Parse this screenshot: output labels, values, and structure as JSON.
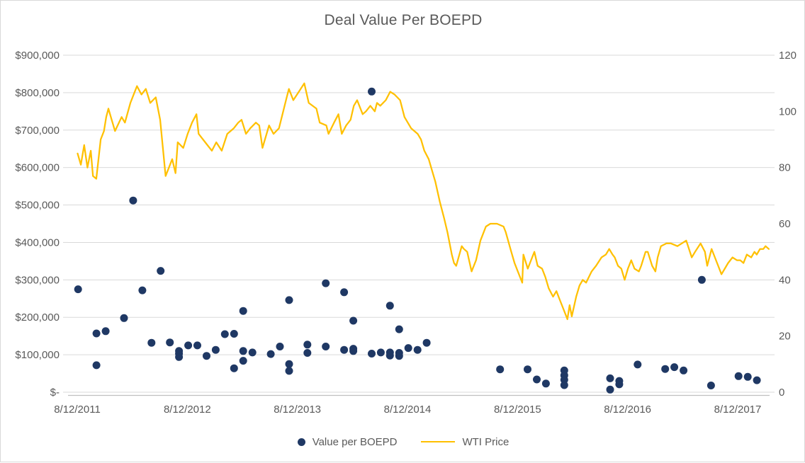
{
  "title": "Deal Value Per BOEPD",
  "legend": [
    {
      "label": "Value per BOEPD",
      "marker": "dot-icon"
    },
    {
      "label": "WTI Price",
      "marker": "line-icon"
    }
  ],
  "colors": {
    "scatter": "#1F3864",
    "line": "#FFC000",
    "grid": "#D9D9D9",
    "axis_line": "#BFBFBF",
    "text": "#595959"
  },
  "left_axis": {
    "tick_labels": [
      "$900,000",
      "$800,000",
      "$700,000",
      "$600,000",
      "$500,000",
      "$400,000",
      "$300,000",
      "$200,000",
      "$100,000",
      "$-"
    ],
    "min": 0,
    "max": 900000,
    "step": 100000
  },
  "right_axis": {
    "tick_labels": [
      "120",
      "100",
      "80",
      "60",
      "40",
      "20",
      "0"
    ],
    "min": 0,
    "max": 120,
    "step": 20
  },
  "x_axis": {
    "tick_labels": [
      "8/12/2011",
      "8/12/2012",
      "8/12/2013",
      "8/12/2014",
      "8/12/2015",
      "8/12/2016",
      "8/12/2017"
    ]
  },
  "chart_data": {
    "type": "scatter",
    "title": "Deal Value Per BOEPD",
    "grid": true,
    "legend_position": "bottom",
    "left_ylim": [
      0,
      900000
    ],
    "right_ylim": [
      0,
      120
    ],
    "x_start": "8/12/2011",
    "x_end": "8/12/2017",
    "series": [
      {
        "name": "Value per BOEPD",
        "type": "scatter",
        "axis": "left",
        "points": [
          [
            "2011-08",
            275000
          ],
          [
            "2011-10",
            157000
          ],
          [
            "2011-10",
            72000
          ],
          [
            "2011-11",
            163000
          ],
          [
            "2012-01",
            198000
          ],
          [
            "2012-02",
            512000
          ],
          [
            "2012-03",
            272000
          ],
          [
            "2012-04",
            132000
          ],
          [
            "2012-05",
            324000
          ],
          [
            "2012-06",
            133000
          ],
          [
            "2012-07",
            110000
          ],
          [
            "2012-07",
            94000
          ],
          [
            "2012-07",
            103000
          ],
          [
            "2012-08",
            125000
          ],
          [
            "2012-09",
            125000
          ],
          [
            "2012-10",
            97000
          ],
          [
            "2012-11",
            113000
          ],
          [
            "2012-12",
            155000
          ],
          [
            "2013-01",
            156000
          ],
          [
            "2013-01",
            64000
          ],
          [
            "2013-02",
            217000
          ],
          [
            "2013-02",
            110000
          ],
          [
            "2013-02",
            84000
          ],
          [
            "2013-03",
            106000
          ],
          [
            "2013-05",
            102000
          ],
          [
            "2013-06",
            122000
          ],
          [
            "2013-07",
            246000
          ],
          [
            "2013-07",
            75000
          ],
          [
            "2013-07",
            57000
          ],
          [
            "2013-09",
            127000
          ],
          [
            "2013-09",
            105000
          ],
          [
            "2013-11",
            291000
          ],
          [
            "2013-11",
            122000
          ],
          [
            "2014-01",
            267000
          ],
          [
            "2014-01",
            113000
          ],
          [
            "2014-02",
            116000
          ],
          [
            "2014-02",
            110000
          ],
          [
            "2014-02",
            191000
          ],
          [
            "2014-04",
            803000
          ],
          [
            "2014-04",
            103000
          ],
          [
            "2014-05",
            106000
          ],
          [
            "2014-06",
            231000
          ],
          [
            "2014-06",
            106000
          ],
          [
            "2014-06",
            98000
          ],
          [
            "2014-07",
            168000
          ],
          [
            "2014-07",
            97000
          ],
          [
            "2014-07",
            105000
          ],
          [
            "2014-08",
            118000
          ],
          [
            "2014-09",
            113000
          ],
          [
            "2014-10",
            132000
          ],
          [
            "2015-06",
            61000
          ],
          [
            "2015-09",
            61000
          ],
          [
            "2015-10",
            34000
          ],
          [
            "2015-11",
            23000
          ],
          [
            "2016-01",
            58000
          ],
          [
            "2016-01",
            45000
          ],
          [
            "2016-01",
            33000
          ],
          [
            "2016-01",
            19000
          ],
          [
            "2016-06",
            37000
          ],
          [
            "2016-06",
            7000
          ],
          [
            "2016-07",
            30000
          ],
          [
            "2016-07",
            21000
          ],
          [
            "2016-09",
            74000
          ],
          [
            "2016-12",
            62000
          ],
          [
            "2017-01",
            67000
          ],
          [
            "2017-02",
            58000
          ],
          [
            "2017-04",
            300000
          ],
          [
            "2017-05",
            18000
          ],
          [
            "2017-08",
            43000
          ],
          [
            "2017-09",
            41000
          ],
          [
            "2017-10",
            32000
          ]
        ]
      },
      {
        "name": "WTI Price",
        "type": "line",
        "axis": "right",
        "points": [
          [
            2011.62,
            85
          ],
          [
            2011.65,
            81
          ],
          [
            2011.68,
            88
          ],
          [
            2011.71,
            80
          ],
          [
            2011.74,
            86
          ],
          [
            2011.76,
            77
          ],
          [
            2011.79,
            76
          ],
          [
            2011.83,
            90
          ],
          [
            2011.86,
            93
          ],
          [
            2011.88,
            98
          ],
          [
            2011.9,
            101
          ],
          [
            2011.93,
            97
          ],
          [
            2011.96,
            93
          ],
          [
            2012.02,
            98
          ],
          [
            2012.05,
            96
          ],
          [
            2012.1,
            103
          ],
          [
            2012.16,
            109
          ],
          [
            2012.2,
            106
          ],
          [
            2012.24,
            108
          ],
          [
            2012.28,
            103
          ],
          [
            2012.33,
            105
          ],
          [
            2012.37,
            97
          ],
          [
            2012.42,
            77
          ],
          [
            2012.45,
            80
          ],
          [
            2012.48,
            83
          ],
          [
            2012.51,
            78
          ],
          [
            2012.53,
            89
          ],
          [
            2012.58,
            87
          ],
          [
            2012.62,
            92
          ],
          [
            2012.66,
            96
          ],
          [
            2012.7,
            99
          ],
          [
            2012.72,
            92
          ],
          [
            2012.78,
            89
          ],
          [
            2012.84,
            86
          ],
          [
            2012.88,
            89
          ],
          [
            2012.93,
            86
          ],
          [
            2012.98,
            92
          ],
          [
            2013.04,
            94
          ],
          [
            2013.08,
            96
          ],
          [
            2013.11,
            97
          ],
          [
            2013.15,
            92
          ],
          [
            2013.19,
            94
          ],
          [
            2013.24,
            96
          ],
          [
            2013.27,
            95
          ],
          [
            2013.3,
            87
          ],
          [
            2013.36,
            95
          ],
          [
            2013.4,
            92
          ],
          [
            2013.45,
            94
          ],
          [
            2013.52,
            105
          ],
          [
            2013.54,
            108
          ],
          [
            2013.58,
            104
          ],
          [
            2013.63,
            107
          ],
          [
            2013.68,
            110
          ],
          [
            2013.72,
            103
          ],
          [
            2013.79,
            101
          ],
          [
            2013.82,
            96
          ],
          [
            2013.88,
            95
          ],
          [
            2013.9,
            92
          ],
          [
            2013.95,
            96
          ],
          [
            2013.99,
            99
          ],
          [
            2014.02,
            92
          ],
          [
            2014.06,
            95
          ],
          [
            2014.1,
            97
          ],
          [
            2014.13,
            102
          ],
          [
            2014.16,
            104
          ],
          [
            2014.21,
            99
          ],
          [
            2014.24,
            100
          ],
          [
            2014.28,
            102
          ],
          [
            2014.32,
            100
          ],
          [
            2014.34,
            103
          ],
          [
            2014.37,
            102
          ],
          [
            2014.42,
            104
          ],
          [
            2014.46,
            107
          ],
          [
            2014.5,
            106
          ],
          [
            2014.55,
            104
          ],
          [
            2014.59,
            98
          ],
          [
            2014.65,
            94
          ],
          [
            2014.71,
            92
          ],
          [
            2014.74,
            90
          ],
          [
            2014.77,
            86
          ],
          [
            2014.81,
            83
          ],
          [
            2014.84,
            79
          ],
          [
            2014.87,
            75
          ],
          [
            2014.91,
            68
          ],
          [
            2014.95,
            62
          ],
          [
            2014.98,
            57
          ],
          [
            2015.02,
            49
          ],
          [
            2015.04,
            46
          ],
          [
            2015.06,
            45
          ],
          [
            2015.11,
            52
          ],
          [
            2015.13,
            51
          ],
          [
            2015.16,
            50
          ],
          [
            2015.2,
            43
          ],
          [
            2015.24,
            47
          ],
          [
            2015.28,
            54
          ],
          [
            2015.33,
            59
          ],
          [
            2015.37,
            60
          ],
          [
            2015.43,
            60
          ],
          [
            2015.49,
            59
          ],
          [
            2015.51,
            57
          ],
          [
            2015.56,
            50
          ],
          [
            2015.59,
            46
          ],
          [
            2015.63,
            42
          ],
          [
            2015.66,
            39
          ],
          [
            2015.67,
            49
          ],
          [
            2015.71,
            44
          ],
          [
            2015.74,
            47
          ],
          [
            2015.77,
            50
          ],
          [
            2015.8,
            45
          ],
          [
            2015.84,
            44
          ],
          [
            2015.87,
            41
          ],
          [
            2015.9,
            37
          ],
          [
            2015.94,
            34
          ],
          [
            2015.97,
            36
          ],
          [
            2016.0,
            33
          ],
          [
            2016.03,
            30
          ],
          [
            2016.05,
            28
          ],
          [
            2016.07,
            26
          ],
          [
            2016.09,
            31
          ],
          [
            2016.11,
            27
          ],
          [
            2016.15,
            34
          ],
          [
            2016.18,
            38
          ],
          [
            2016.21,
            40
          ],
          [
            2016.24,
            39
          ],
          [
            2016.29,
            43
          ],
          [
            2016.33,
            45
          ],
          [
            2016.38,
            48
          ],
          [
            2016.42,
            49
          ],
          [
            2016.45,
            51
          ],
          [
            2016.48,
            49
          ],
          [
            2016.5,
            48
          ],
          [
            2016.53,
            45
          ],
          [
            2016.56,
            44
          ],
          [
            2016.59,
            40
          ],
          [
            2016.62,
            44
          ],
          [
            2016.65,
            47
          ],
          [
            2016.68,
            44
          ],
          [
            2016.72,
            43
          ],
          [
            2016.74,
            45
          ],
          [
            2016.78,
            50
          ],
          [
            2016.8,
            50
          ],
          [
            2016.84,
            45
          ],
          [
            2016.87,
            43
          ],
          [
            2016.89,
            48
          ],
          [
            2016.92,
            52
          ],
          [
            2016.97,
            53
          ],
          [
            2017.01,
            53
          ],
          [
            2017.07,
            52
          ],
          [
            2017.15,
            54
          ],
          [
            2017.2,
            48
          ],
          [
            2017.23,
            50
          ],
          [
            2017.28,
            53
          ],
          [
            2017.32,
            50
          ],
          [
            2017.34,
            45
          ],
          [
            2017.38,
            51
          ],
          [
            2017.4,
            49
          ],
          [
            2017.44,
            45
          ],
          [
            2017.47,
            42
          ],
          [
            2017.5,
            44
          ],
          [
            2017.53,
            46
          ],
          [
            2017.57,
            48
          ],
          [
            2017.61,
            47
          ],
          [
            2017.64,
            47
          ],
          [
            2017.67,
            46
          ],
          [
            2017.7,
            49
          ],
          [
            2017.74,
            48
          ],
          [
            2017.77,
            50
          ],
          [
            2017.79,
            49
          ],
          [
            2017.82,
            51
          ],
          [
            2017.85,
            51
          ],
          [
            2017.87,
            52
          ],
          [
            2017.9,
            51
          ]
        ]
      }
    ]
  }
}
